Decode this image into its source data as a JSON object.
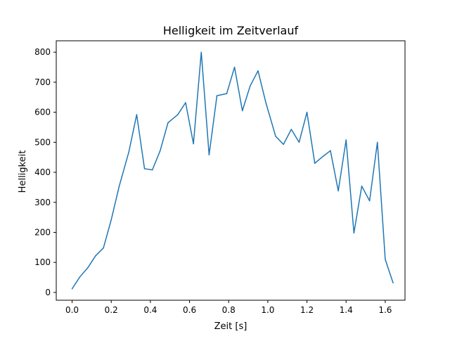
{
  "chart_data": {
    "type": "line",
    "title": "Helligkeit im Zeitverlauf",
    "xlabel": "Zeit [s]",
    "ylabel": "Helligkeit",
    "xlim": [
      -0.081,
      1.701
    ],
    "ylim": [
      -26,
      838
    ],
    "xticks": [
      0.0,
      0.2,
      0.4,
      0.6,
      0.8,
      1.0,
      1.2,
      1.4,
      1.6
    ],
    "xtick_labels": [
      "0.0",
      "0.2",
      "0.4",
      "0.6",
      "0.8",
      "1.0",
      "1.2",
      "1.4",
      "1.6"
    ],
    "yticks": [
      0,
      100,
      200,
      300,
      400,
      500,
      600,
      700,
      800
    ],
    "ytick_labels": [
      "0",
      "100",
      "200",
      "300",
      "400",
      "500",
      "600",
      "700",
      "800"
    ],
    "grid": false,
    "series": [
      {
        "color": "#1f77b4",
        "x": [
          0.0,
          0.04,
          0.08,
          0.12,
          0.16,
          0.2,
          0.24,
          0.29,
          0.33,
          0.37,
          0.41,
          0.45,
          0.49,
          0.54,
          0.58,
          0.62,
          0.66,
          0.7,
          0.74,
          0.79,
          0.83,
          0.87,
          0.91,
          0.95,
          0.99,
          1.04,
          1.08,
          1.12,
          1.16,
          1.2,
          1.24,
          1.28,
          1.32,
          1.36,
          1.4,
          1.44,
          1.48,
          1.52,
          1.56,
          1.6,
          1.64
        ],
        "y": [
          12,
          52,
          82,
          122,
          148,
          242,
          352,
          468,
          592,
          412,
          408,
          472,
          565,
          592,
          632,
          495,
          800,
          458,
          655,
          662,
          750,
          605,
          688,
          738,
          632,
          520,
          493,
          543,
          500,
          600,
          430,
          452,
          472,
          338,
          508,
          198,
          354,
          305,
          500,
          110,
          32
        ]
      }
    ]
  }
}
